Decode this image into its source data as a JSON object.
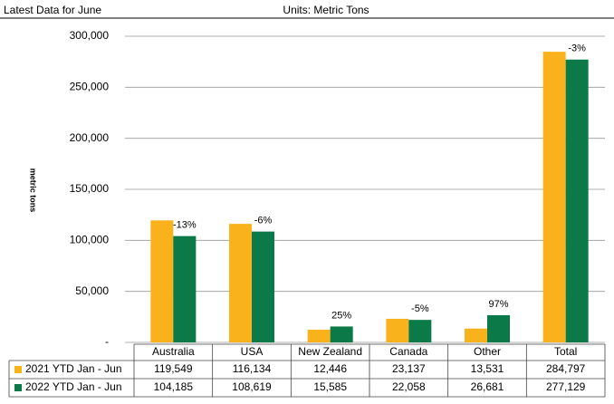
{
  "chart_data": {
    "type": "bar",
    "subtitle_left": "Latest Data for June",
    "subtitle_center": "Units: Metric Tons",
    "y_label": "metric tons",
    "categories": [
      "Australia",
      "USA",
      "New Zealand",
      "Canada",
      "Other",
      "Total"
    ],
    "series": [
      {
        "name": "2021 YTD Jan - Jun",
        "color": "#f9b21b",
        "values": [
          119549,
          116134,
          12446,
          23137,
          13531,
          284797
        ],
        "value_labels": [
          "119,549",
          "116,134",
          "12,446",
          "23,137",
          "13,531",
          "284,797"
        ]
      },
      {
        "name": "2022 YTD Jan - Jun",
        "color": "#0b7a48",
        "values": [
          104185,
          108619,
          15585,
          22058,
          26681,
          277129
        ],
        "value_labels": [
          "104,185",
          "108,619",
          "15,585",
          "22,058",
          "26,681",
          "277,129"
        ]
      }
    ],
    "change_labels": [
      "-13%",
      "-6%",
      "25%",
      "-5%",
      "97%",
      "-3%"
    ],
    "ylim": [
      0,
      300000
    ],
    "yticks": [
      {
        "value": 0,
        "label": "-"
      },
      {
        "value": 50000,
        "label": "50,000"
      },
      {
        "value": 100000,
        "label": "100,000"
      },
      {
        "value": 150000,
        "label": "150,000"
      },
      {
        "value": 200000,
        "label": "200,000"
      },
      {
        "value": 250000,
        "label": "250,000"
      },
      {
        "value": 300000,
        "label": "300,000"
      }
    ],
    "grid": true
  }
}
